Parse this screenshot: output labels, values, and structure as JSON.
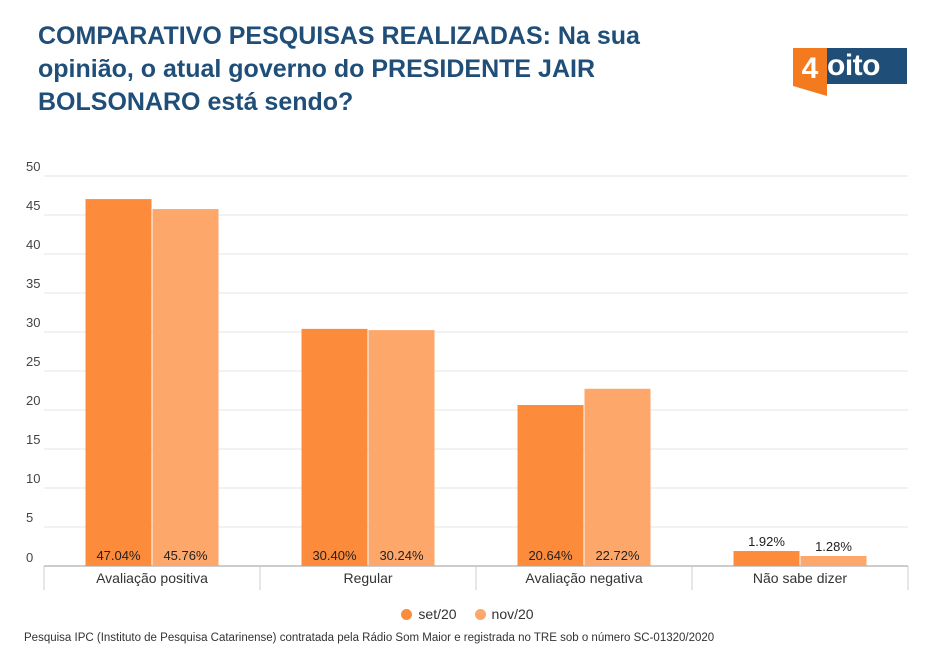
{
  "title": "COMPARATIVO PESQUISAS REALIZADAS: Na sua opinião, o atual governo do PRESIDENTE JAIR BOLSONARO está sendo?",
  "logo": {
    "number": "4",
    "text": "oito"
  },
  "source": "Pesquisa IPC (Instituto de Pesquisa Catarinense) contratada pela Rádio Som Maior e registrada no TRE sob o número SC-01320/2020",
  "colors": {
    "title": "#1f4e79",
    "set20": "#fd8b3c",
    "nov20": "#fda76b",
    "logo_orange": "#f47a20"
  },
  "chart_data": {
    "type": "bar",
    "categories": [
      "Avaliação positiva",
      "Regular",
      "Avaliação negativa",
      "Não sabe dizer"
    ],
    "series": [
      {
        "name": "set/20",
        "values": [
          47.04,
          30.4,
          20.64,
          1.92
        ],
        "labels": [
          "47.04%",
          "30.40%",
          "20.64%",
          "1.92%"
        ],
        "color": "#fd8b3c"
      },
      {
        "name": "nov/20",
        "values": [
          45.76,
          30.24,
          22.72,
          1.28
        ],
        "labels": [
          "45.76%",
          "30.24%",
          "22.72%",
          "1.28%"
        ],
        "color": "#fda76b"
      }
    ],
    "yticks": [
      0,
      5,
      10,
      15,
      20,
      25,
      30,
      35,
      40,
      45,
      50
    ],
    "ylim": [
      0,
      50
    ],
    "grid": true,
    "legend": "bottom-center",
    "xlabel": "",
    "ylabel": ""
  }
}
